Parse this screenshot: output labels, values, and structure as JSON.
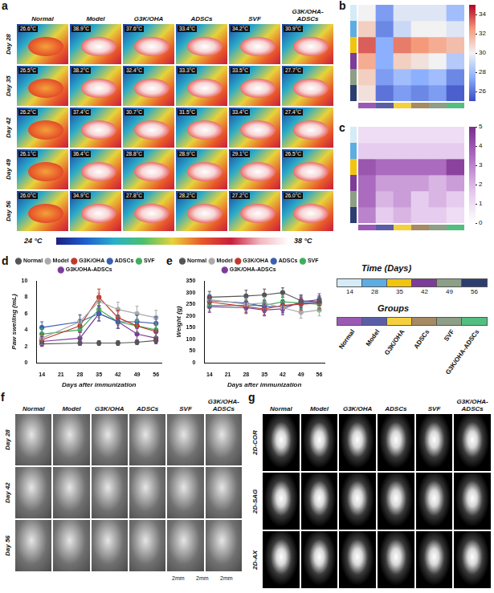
{
  "chart_data": [
    {
      "panel": "b",
      "type": "heatmap",
      "cells": [
        [
          30,
          27,
          29.5,
          29.5,
          29.5,
          28
        ],
        [
          31,
          26.5,
          29,
          30,
          30,
          29.5
        ],
        [
          33.5,
          27.5,
          33,
          32.5,
          32,
          31.5
        ],
        [
          32,
          27.5,
          31,
          30.5,
          30,
          28.5
        ],
        [
          31,
          27,
          28,
          27.5,
          28,
          26.5
        ],
        [
          30.5,
          26,
          27,
          26.5,
          27,
          25.5
        ]
      ],
      "colorbar": {
        "range": [
          25,
          35
        ],
        "ticks": [
          26,
          28,
          30,
          32,
          34
        ]
      },
      "tick_labels": false
    },
    {
      "panel": "c",
      "type": "heatmap",
      "cells": [
        [
          1,
          1,
          1,
          1,
          1,
          1
        ],
        [
          1.5,
          1.5,
          1.5,
          1.5,
          1.5,
          1.5
        ],
        [
          4,
          3.5,
          3.5,
          3.5,
          3.5,
          4.5
        ],
        [
          3.5,
          2.5,
          2.5,
          2.5,
          2,
          2.5
        ],
        [
          3.5,
          2,
          2.5,
          1.5,
          2,
          1.5
        ],
        [
          3,
          1.5,
          2,
          1.5,
          1.5,
          1
        ]
      ],
      "colorbar": {
        "range": [
          0,
          5
        ],
        "ticks": [
          0,
          1,
          2,
          3,
          4,
          5
        ]
      },
      "tick_labels": false
    },
    {
      "panel": "d",
      "type": "line",
      "x_label": "Days after immunization",
      "y_label": "Paw swelling (mL)",
      "x": [
        14,
        28,
        35,
        42,
        49,
        56
      ],
      "xlim": [
        12,
        58
      ],
      "xticks": [
        14,
        21,
        28,
        35,
        42,
        49,
        56
      ],
      "ylim": [
        0,
        10
      ],
      "yticks": [
        0,
        2,
        4,
        6,
        8,
        10
      ],
      "grid": false,
      "legend": "top",
      "marker": "circle",
      "series": [
        {
          "name": "Normal",
          "color": "#555555",
          "values": [
            2.3,
            2.4,
            2.4,
            2.4,
            2.5,
            2.7
          ],
          "errors": [
            0.3,
            0.3,
            0.3,
            0.3,
            0.3,
            0.3
          ]
        },
        {
          "name": "Model",
          "color": "#aaaaaa",
          "values": [
            3.0,
            5.0,
            7.5,
            6.5,
            6.0,
            5.5
          ],
          "errors": [
            0.8,
            0.9,
            1.0,
            0.9,
            0.9,
            0.9
          ]
        },
        {
          "name": "G3K/OHA",
          "color": "#c0392b",
          "values": [
            2.8,
            4.5,
            8.0,
            5.5,
            4.5,
            3.8
          ],
          "errors": [
            0.7,
            0.8,
            1.0,
            0.9,
            0.8,
            0.8
          ]
        },
        {
          "name": "ADSCs",
          "color": "#3a5fb0",
          "values": [
            4.3,
            5.0,
            6.0,
            5.0,
            5.0,
            4.8
          ],
          "errors": [
            0.7,
            0.8,
            0.9,
            0.8,
            0.8,
            0.8
          ]
        },
        {
          "name": "SVF",
          "color": "#3fae5a",
          "values": [
            3.5,
            4.0,
            6.5,
            5.0,
            4.5,
            4.0
          ],
          "errors": [
            0.7,
            0.8,
            1.0,
            0.8,
            0.8,
            0.8
          ]
        },
        {
          "name": "G3K/OHA-ADSCs",
          "color": "#7d3c98",
          "values": [
            2.6,
            3.0,
            6.0,
            5.0,
            3.5,
            3.0
          ],
          "errors": [
            0.6,
            0.7,
            0.9,
            0.8,
            0.7,
            0.7
          ]
        }
      ]
    },
    {
      "panel": "e",
      "type": "line",
      "x_label": "Days after immunization",
      "y_label": "Weight (g)",
      "x": [
        14,
        28,
        35,
        42,
        49,
        56
      ],
      "xlim": [
        12,
        58
      ],
      "xticks": [
        14,
        21,
        28,
        35,
        42,
        49,
        56
      ],
      "ylim": [
        0,
        350
      ],
      "yticks": [
        0,
        50,
        100,
        150,
        200,
        250,
        300,
        350
      ],
      "grid": false,
      "legend": "top",
      "marker": "circle",
      "series": [
        {
          "name": "Normal",
          "color": "#555555",
          "values": [
            280,
            285,
            290,
            300,
            265,
            260
          ],
          "errors": [
            25,
            25,
            25,
            20,
            25,
            25
          ]
        },
        {
          "name": "Model",
          "color": "#aaaaaa",
          "values": [
            270,
            250,
            255,
            235,
            215,
            225
          ],
          "errors": [
            25,
            25,
            25,
            25,
            25,
            25
          ]
        },
        {
          "name": "G3K/OHA",
          "color": "#c0392b",
          "values": [
            260,
            240,
            230,
            245,
            250,
            255
          ],
          "errors": [
            25,
            25,
            25,
            25,
            25,
            25
          ]
        },
        {
          "name": "ADSCs",
          "color": "#3a5fb0",
          "values": [
            265,
            255,
            240,
            240,
            255,
            260
          ],
          "errors": [
            25,
            25,
            25,
            25,
            25,
            25
          ]
        },
        {
          "name": "SVF",
          "color": "#3fae5a",
          "values": [
            245,
            245,
            245,
            260,
            255,
            250
          ],
          "errors": [
            25,
            25,
            25,
            25,
            25,
            25
          ]
        },
        {
          "name": "G3K/OHA-ADSCs",
          "color": "#7d3c98",
          "values": [
            240,
            235,
            225,
            230,
            260,
            270
          ],
          "errors": [
            25,
            25,
            25,
            25,
            25,
            25
          ]
        }
      ]
    }
  ],
  "panel_a": {
    "letter": "a",
    "columns": [
      "Normal",
      "Model",
      "G3K/OHA",
      "ADSCs",
      "SVF",
      "G3K/OHA-ADSCs"
    ],
    "rows": [
      "Day 28",
      "Day 35",
      "Day 42",
      "Day 49",
      "Day 56"
    ],
    "readings": [
      [
        "26.6°C",
        "38.9°C",
        "37.6°C",
        "33.4°C",
        "34.2°C",
        "30.9°C"
      ],
      [
        "26.5°C",
        "38.2°C",
        "32.4°C",
        "33.3°C",
        "33.5°C",
        "27.7°C"
      ],
      [
        "26.2°C",
        "37.4°C",
        "30.7°C",
        "31.5°C",
        "33.4°C",
        "27.4°C"
      ],
      [
        "26.1°C",
        "36.4°C",
        "28.8°C",
        "28.9°C",
        "29.1°C",
        "26.5°C"
      ],
      [
        "26.0°C",
        "34.9°C",
        "27.8°C",
        "28.2°C",
        "27.2°C",
        "26.0°C"
      ]
    ],
    "colorbar": {
      "low": "24 °C",
      "high": "38 °C"
    }
  },
  "panel_f": {
    "letter": "f",
    "columns": [
      "Normal",
      "Model",
      "G3K/OHA",
      "ADSCs",
      "SVF",
      "G3K/OHA-ADSCs"
    ],
    "rows": [
      "Day 28",
      "Day 42",
      "Day 56"
    ],
    "scale_labels": [
      "2mm",
      "2mm",
      "2mm"
    ]
  },
  "panel_g": {
    "letter": "g",
    "columns": [
      "Normal",
      "Model",
      "G3K/OHA",
      "ADSCs",
      "SVF",
      "G3K/OHA-ADSCs"
    ],
    "rows": [
      "2D-COR",
      "2D-SAG",
      "2D-AX"
    ]
  },
  "key": {
    "time": {
      "title": "Time (Days)",
      "values": [
        14,
        28,
        35,
        42,
        49,
        56
      ],
      "colors": [
        "#d4ecf7",
        "#5dade2",
        "#f1c40f",
        "#7d3c98",
        "#8d9f87",
        "#2c3e70"
      ]
    },
    "groups": {
      "title": "Groups",
      "names": [
        "Normal",
        "Model",
        "G3K/OHA",
        "ADSCs",
        "SVF",
        "G3K/OHA-ADSCs"
      ],
      "colors": [
        "#9b59b6",
        "#5b5ea6",
        "#f4d03f",
        "#a68a64",
        "#8d9f87",
        "#52be80"
      ]
    }
  }
}
